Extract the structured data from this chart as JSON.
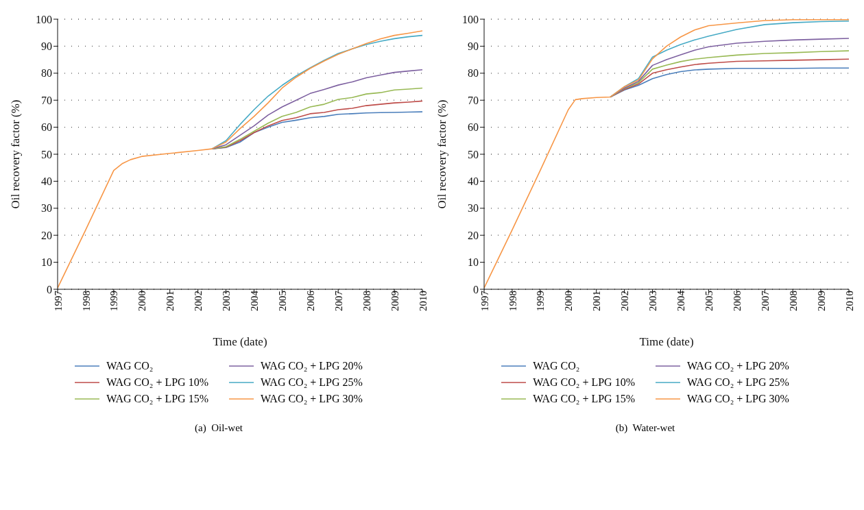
{
  "chart_data": [
    {
      "type": "line",
      "xlabel": "Time (date)",
      "ylabel": "Oil recovery factor (%)",
      "annotations": [
        "(a)  Oil-wet"
      ],
      "xlim": [
        1997,
        2010
      ],
      "xticks": [
        1997,
        1998,
        1999,
        2000,
        2001,
        2002,
        2003,
        2004,
        2005,
        2006,
        2007,
        2008,
        2009,
        2010
      ],
      "ylim": [
        0,
        100
      ],
      "yticks": [
        0,
        10,
        20,
        30,
        40,
        50,
        60,
        70,
        80,
        90,
        100
      ],
      "grid": "y",
      "legend": "bottom",
      "marker": "none",
      "line_style": "solid",
      "series": [
        {
          "name": "WAG CO₂",
          "color": "#4a7ebb",
          "x": [
            2002.5,
            2003,
            2003.5,
            2004,
            2004.5,
            2005,
            2005.5,
            2006,
            2006.5,
            2007,
            2007.5,
            2008,
            2008.5,
            2009,
            2009.5,
            2010
          ],
          "values": [
            52,
            52.5,
            54.5,
            58,
            60,
            61.8,
            62.6,
            63.5,
            64,
            64.8,
            65,
            65.3,
            65.4,
            65.5,
            65.6,
            65.7
          ]
        },
        {
          "name": "WAG CO₂ + LPG 10%",
          "color": "#be4b48",
          "x": [
            2002.5,
            2003,
            2003.5,
            2004,
            2004.5,
            2005,
            2005.5,
            2006,
            2006.5,
            2007,
            2007.5,
            2008,
            2008.5,
            2009,
            2009.5,
            2010
          ],
          "values": [
            52,
            52.6,
            55,
            58,
            60.5,
            62.5,
            63.5,
            65,
            65.5,
            66.5,
            67,
            68,
            68.5,
            69,
            69.3,
            69.7
          ]
        },
        {
          "name": "WAG CO₂ + LPG 15%",
          "color": "#98b954",
          "x": [
            2002.5,
            2003,
            2003.5,
            2004,
            2004.5,
            2005,
            2005.5,
            2006,
            2006.5,
            2007,
            2007.5,
            2008,
            2008.5,
            2009,
            2009.5,
            2010
          ],
          "values": [
            52,
            52.8,
            55.5,
            58.5,
            61.5,
            64,
            65.5,
            67.5,
            68.5,
            70.3,
            71,
            72.3,
            72.8,
            73.8,
            74.1,
            74.5
          ]
        },
        {
          "name": "WAG CO₂ + LPG 20%",
          "color": "#7d60a0",
          "x": [
            2002.5,
            2003,
            2003.5,
            2004,
            2004.5,
            2005,
            2005.5,
            2006,
            2006.5,
            2007,
            2007.5,
            2008,
            2008.5,
            2009,
            2009.5,
            2010
          ],
          "values": [
            52,
            53.5,
            57,
            60.5,
            64.5,
            67.5,
            70,
            72.5,
            74,
            75.6,
            76.8,
            78.3,
            79.3,
            80.3,
            80.8,
            81.3
          ]
        },
        {
          "name": "WAG CO₂ + LPG 25%",
          "color": "#46aac5",
          "x": [
            2002.5,
            2003,
            2003.5,
            2004,
            2004.5,
            2005,
            2005.5,
            2006,
            2006.5,
            2007,
            2007.5,
            2008,
            2008.5,
            2009,
            2009.5,
            2010
          ],
          "values": [
            52,
            55,
            61,
            66.5,
            71.5,
            75.5,
            79,
            82,
            84.8,
            87.3,
            89,
            90.6,
            91.8,
            92.8,
            93.5,
            94
          ]
        },
        {
          "name": "WAG CO₂ + LPG 30%",
          "color": "#f79646",
          "x": [
            1997,
            1998,
            1999,
            1999.3,
            1999.6,
            2000,
            2001,
            2002,
            2002.5,
            2003,
            2003.5,
            2004,
            2004.5,
            2005,
            2005.5,
            2006,
            2006.5,
            2007,
            2007.5,
            2008,
            2008.5,
            2009,
            2009.5,
            2010
          ],
          "values": [
            0.5,
            22,
            44,
            46.5,
            48,
            49.2,
            50.3,
            51.4,
            52,
            54.5,
            59.5,
            64,
            69,
            74.5,
            78.5,
            81.8,
            84.5,
            87,
            89,
            91,
            92.7,
            94,
            94.8,
            95.7
          ]
        }
      ]
    },
    {
      "type": "line",
      "xlabel": "Time (date)",
      "ylabel": "Oil recovery factor (%)",
      "annotations": [
        "(b)  Water-wet"
      ],
      "xlim": [
        1997,
        2010
      ],
      "xticks": [
        1997,
        1998,
        1999,
        2000,
        2001,
        2002,
        2003,
        2004,
        2005,
        2006,
        2007,
        2008,
        2009,
        2010
      ],
      "ylim": [
        0,
        100
      ],
      "yticks": [
        0,
        10,
        20,
        30,
        40,
        50,
        60,
        70,
        80,
        90,
        100
      ],
      "grid": "y",
      "legend": "bottom",
      "marker": "none",
      "line_style": "solid",
      "series": [
        {
          "name": "WAG CO₂",
          "color": "#4a7ebb",
          "x": [
            2001.5,
            2002,
            2002.5,
            2003,
            2003.5,
            2004,
            2004.5,
            2005,
            2006,
            2007,
            2008,
            2009,
            2010
          ],
          "values": [
            71.2,
            73.8,
            75.5,
            78,
            79.5,
            80.6,
            81.2,
            81.5,
            81.8,
            81.8,
            81.8,
            81.9,
            81.9
          ]
        },
        {
          "name": "WAG CO₂ + LPG 10%",
          "color": "#be4b48",
          "x": [
            2001.5,
            2002,
            2002.5,
            2003,
            2003.5,
            2004,
            2004.5,
            2005,
            2006,
            2007,
            2008,
            2009,
            2010
          ],
          "values": [
            71.2,
            74,
            76,
            80,
            81.3,
            82.3,
            83.2,
            83.7,
            84.4,
            84.6,
            84.8,
            85,
            85.2
          ]
        },
        {
          "name": "WAG CO₂ + LPG 15%",
          "color": "#98b954",
          "x": [
            2001.5,
            2002,
            2002.5,
            2003,
            2003.5,
            2004,
            2004.5,
            2005,
            2006,
            2007,
            2008,
            2009,
            2010
          ],
          "values": [
            71.2,
            74.3,
            76.5,
            81.5,
            83,
            84.3,
            85.2,
            85.8,
            86.7,
            87.3,
            87.6,
            88,
            88.3
          ]
        },
        {
          "name": "WAG CO₂ + LPG 20%",
          "color": "#7d60a0",
          "x": [
            2001.5,
            2002,
            2002.5,
            2003,
            2003.5,
            2004,
            2004.5,
            2005,
            2006,
            2007,
            2008,
            2009,
            2010
          ],
          "values": [
            71.2,
            74.5,
            77,
            82.9,
            85,
            86.8,
            88.5,
            89.8,
            91.1,
            91.8,
            92.3,
            92.6,
            92.9
          ]
        },
        {
          "name": "WAG CO₂ + LPG 25%",
          "color": "#46aac5",
          "x": [
            2001.5,
            2002,
            2002.5,
            2003,
            2003.5,
            2004,
            2004.5,
            2005,
            2006,
            2007,
            2008,
            2009,
            2010
          ],
          "values": [
            71.2,
            75,
            78,
            86,
            88.5,
            90.6,
            92.3,
            93.7,
            96.2,
            98,
            98.7,
            99.1,
            99.3
          ]
        },
        {
          "name": "WAG CO₂ + LPG 30%",
          "color": "#f79646",
          "x": [
            1997,
            1998,
            1999,
            2000,
            2000.25,
            2000.5,
            2001,
            2001.5,
            2002,
            2002.5,
            2003,
            2003.5,
            2004,
            2004.5,
            2005,
            2006,
            2007,
            2008,
            2009,
            2010
          ],
          "values": [
            0.5,
            22,
            44,
            66.5,
            70.2,
            70.6,
            71,
            71.2,
            75,
            77.5,
            85.3,
            90,
            93.4,
            96,
            97.6,
            98.6,
            99.5,
            99.8,
            99.8,
            99.8
          ]
        }
      ]
    }
  ]
}
